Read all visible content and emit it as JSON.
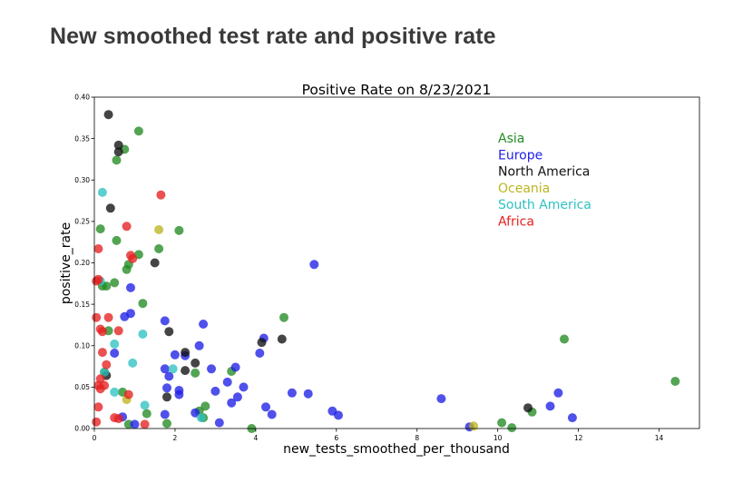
{
  "page": {
    "title": "New smoothed test rate and positive rate"
  },
  "chart_data": {
    "type": "scatter",
    "title": "Positive Rate on 8/23/2021",
    "xlabel": "new_tests_smoothed_per_thousand",
    "ylabel": "positive_rate",
    "xlim": [
      0,
      15
    ],
    "ylim": [
      0,
      0.4
    ],
    "xticks": [
      "0",
      "2",
      "4",
      "6",
      "8",
      "10",
      "12",
      "14"
    ],
    "yticks": [
      "0.00",
      "0.05",
      "0.10",
      "0.15",
      "0.20",
      "0.25",
      "0.30",
      "0.35",
      "0.40"
    ],
    "grid": false,
    "legend_position": "upper-right",
    "series": [
      {
        "name": "Asia",
        "color": "#228b22",
        "points": [
          [
            0.3,
            0.172
          ],
          [
            0.5,
            0.176
          ],
          [
            0.55,
            0.227
          ],
          [
            0.75,
            0.337
          ],
          [
            0.8,
            0.192
          ],
          [
            0.85,
            0.198
          ],
          [
            1.1,
            0.359
          ],
          [
            1.1,
            0.21
          ],
          [
            1.2,
            0.151
          ],
          [
            1.3,
            0.018
          ],
          [
            1.6,
            0.217
          ],
          [
            1.8,
            0.006
          ],
          [
            2.1,
            0.239
          ],
          [
            2.5,
            0.067
          ],
          [
            2.6,
            0.021
          ],
          [
            2.7,
            0.013
          ],
          [
            2.75,
            0.027
          ],
          [
            3.4,
            0.069
          ],
          [
            3.9,
            0.0
          ],
          [
            4.7,
            0.134
          ],
          [
            0.15,
            0.241
          ],
          [
            0.25,
            0.068
          ],
          [
            0.55,
            0.324
          ],
          [
            0.2,
            0.172
          ],
          [
            0.35,
            0.118
          ],
          [
            0.7,
            0.044
          ],
          [
            0.85,
            0.005
          ],
          [
            10.1,
            0.007
          ],
          [
            10.35,
            0.001
          ],
          [
            10.85,
            0.02
          ],
          [
            11.65,
            0.108
          ],
          [
            14.4,
            0.057
          ]
        ]
      },
      {
        "name": "Europe",
        "color": "#1f1fe6",
        "points": [
          [
            0.5,
            0.091
          ],
          [
            0.7,
            0.014
          ],
          [
            0.75,
            0.135
          ],
          [
            0.9,
            0.17
          ],
          [
            0.9,
            0.139
          ],
          [
            1.0,
            0.005
          ],
          [
            1.75,
            0.072
          ],
          [
            1.75,
            0.13
          ],
          [
            1.75,
            0.017
          ],
          [
            1.8,
            0.049
          ],
          [
            1.85,
            0.063
          ],
          [
            2.0,
            0.089
          ],
          [
            2.1,
            0.046
          ],
          [
            2.1,
            0.041
          ],
          [
            2.25,
            0.088
          ],
          [
            2.5,
            0.019
          ],
          [
            2.6,
            0.1
          ],
          [
            2.7,
            0.126
          ],
          [
            2.9,
            0.072
          ],
          [
            3.0,
            0.045
          ],
          [
            3.1,
            0.007
          ],
          [
            3.3,
            0.056
          ],
          [
            3.4,
            0.031
          ],
          [
            3.5,
            0.074
          ],
          [
            3.55,
            0.038
          ],
          [
            3.7,
            0.05
          ],
          [
            4.1,
            0.091
          ],
          [
            4.2,
            0.109
          ],
          [
            4.25,
            0.026
          ],
          [
            4.4,
            0.017
          ],
          [
            4.9,
            0.043
          ],
          [
            5.3,
            0.042
          ],
          [
            5.45,
            0.198
          ],
          [
            5.9,
            0.021
          ],
          [
            6.05,
            0.016
          ],
          [
            8.6,
            0.036
          ],
          [
            9.3,
            0.002
          ],
          [
            11.3,
            0.027
          ],
          [
            11.5,
            0.043
          ],
          [
            11.85,
            0.013
          ]
        ]
      },
      {
        "name": "North America",
        "color": "#111111",
        "points": [
          [
            0.35,
            0.379
          ],
          [
            0.4,
            0.266
          ],
          [
            0.6,
            0.342
          ],
          [
            0.6,
            0.334
          ],
          [
            0.3,
            0.064
          ],
          [
            1.5,
            0.2
          ],
          [
            1.8,
            0.038
          ],
          [
            1.85,
            0.117
          ],
          [
            2.25,
            0.092
          ],
          [
            2.25,
            0.07
          ],
          [
            2.5,
            0.079
          ],
          [
            4.15,
            0.104
          ],
          [
            4.65,
            0.108
          ],
          [
            10.75,
            0.025
          ]
        ]
      },
      {
        "name": "Oceania",
        "color": "#bdb520",
        "points": [
          [
            1.6,
            0.24
          ],
          [
            0.8,
            0.035
          ],
          [
            9.4,
            0.003
          ]
        ]
      },
      {
        "name": "South America",
        "color": "#2fc2c2",
        "points": [
          [
            0.2,
            0.285
          ],
          [
            0.15,
            0.178
          ],
          [
            0.5,
            0.102
          ],
          [
            0.5,
            0.044
          ],
          [
            0.95,
            0.079
          ],
          [
            1.2,
            0.114
          ],
          [
            1.25,
            0.028
          ],
          [
            1.95,
            0.072
          ],
          [
            2.65,
            0.013
          ],
          [
            0.25,
            0.068
          ]
        ]
      },
      {
        "name": "Africa",
        "color": "#e62020",
        "points": [
          [
            0.05,
            0.134
          ],
          [
            0.05,
            0.178
          ],
          [
            0.1,
            0.18
          ],
          [
            0.1,
            0.217
          ],
          [
            0.1,
            0.052
          ],
          [
            0.1,
            0.026
          ],
          [
            0.05,
            0.008
          ],
          [
            0.15,
            0.12
          ],
          [
            0.15,
            0.06
          ],
          [
            0.2,
            0.092
          ],
          [
            0.2,
            0.117
          ],
          [
            0.25,
            0.052
          ],
          [
            0.3,
            0.077
          ],
          [
            0.35,
            0.134
          ],
          [
            0.5,
            0.013
          ],
          [
            0.6,
            0.118
          ],
          [
            0.6,
            0.012
          ],
          [
            0.8,
            0.244
          ],
          [
            0.85,
            0.041
          ],
          [
            0.9,
            0.209
          ],
          [
            0.95,
            0.205
          ],
          [
            1.25,
            0.005
          ],
          [
            1.65,
            0.282
          ],
          [
            0.15,
            0.048
          ]
        ]
      }
    ]
  }
}
